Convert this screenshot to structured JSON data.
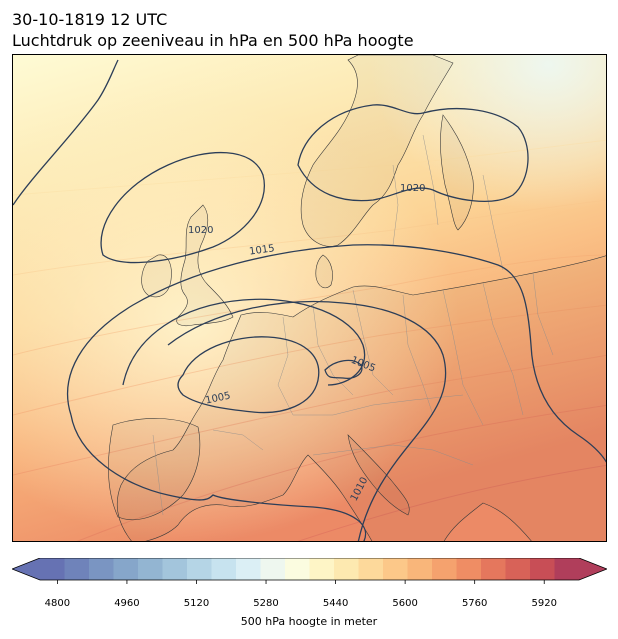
{
  "title": {
    "line1": "30-10-1819 12 UTC",
    "line2": "Luchtdruk op zeeniveau in hPa en 500 hPa hoogte"
  },
  "map": {
    "isobar_labels": [
      "1020",
      "1020",
      "1015",
      "1005",
      "1005",
      "1010"
    ],
    "isobar_color": "#2c3e58",
    "coast_color": "#3a3a3a",
    "border_color": "#8c8c8c"
  },
  "colorbar": {
    "label": "500 hPa hoogte in meter",
    "ticks": [
      "4800",
      "4960",
      "5120",
      "5280",
      "5440",
      "5600",
      "5760",
      "5920"
    ],
    "range": [
      4760,
      6000
    ],
    "colors": [
      "#6672b3",
      "#6f83ba",
      "#7a95c2",
      "#86a6ca",
      "#93b5d2",
      "#a3c5dc",
      "#b5d5e6",
      "#c7e3ef",
      "#dbeff5",
      "#eef7ef",
      "#fbfce0",
      "#fef5c6",
      "#fde9b0",
      "#fdd99b",
      "#fcc889",
      "#f9b67a",
      "#f5a26e",
      "#ef8d64",
      "#e5775d",
      "#d86258",
      "#c84e56",
      "#b03e5b"
    ]
  }
}
